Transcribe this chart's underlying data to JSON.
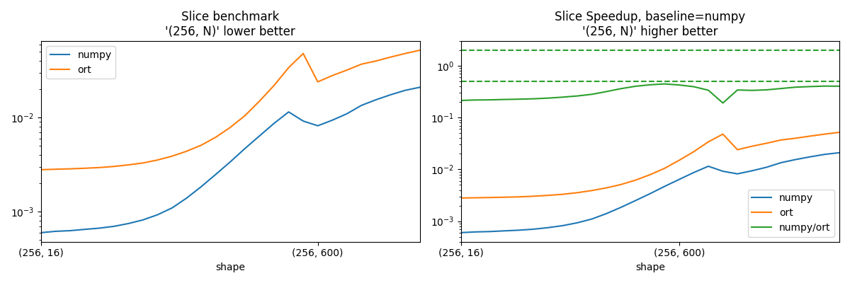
{
  "title1": "Slice benchmark\n'(256, N)' lower better",
  "title2": "Slice Speedup, baseline=numpy\n'(256, N)' higher better",
  "xlabel": "shape",
  "xtick_positions_left": [
    0,
    19
  ],
  "xtick_labels_left": [
    "(256, 16)",
    "(256, 600)"
  ],
  "xtick_positions_right": [
    0,
    15
  ],
  "xtick_labels_right": [
    "(256, 16)",
    "(256, 600)"
  ],
  "numpy_times": [
    0.0006,
    0.00062,
    0.00063,
    0.00065,
    0.00067,
    0.0007,
    0.00075,
    0.00082,
    0.00093,
    0.0011,
    0.0014,
    0.00185,
    0.0025,
    0.0034,
    0.0047,
    0.0064,
    0.0087,
    0.0115,
    0.0092,
    0.0082,
    0.0094,
    0.011,
    0.0135,
    0.0155,
    0.0175,
    0.0195,
    0.021
  ],
  "ort_times": [
    0.0028,
    0.00283,
    0.00286,
    0.0029,
    0.00295,
    0.00303,
    0.00315,
    0.0033,
    0.00355,
    0.0039,
    0.0044,
    0.0051,
    0.0062,
    0.0079,
    0.0105,
    0.015,
    0.022,
    0.034,
    0.048,
    0.024,
    0.028,
    0.032,
    0.037,
    0.04,
    0.044,
    0.048,
    0.052
  ],
  "color_numpy": "#1f77b4",
  "color_ort": "#ff7f0e",
  "color_ratio": "#2ca02c",
  "dashed_line1": 2.0,
  "dashed_line2": 0.5
}
